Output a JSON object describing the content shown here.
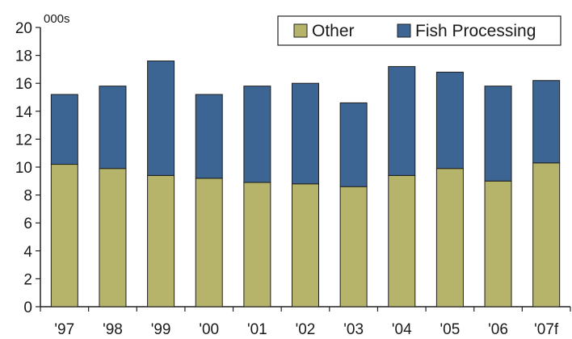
{
  "chart_data": {
    "type": "bar",
    "stacked": true,
    "unit_label": "000s",
    "categories": [
      "'97",
      "'98",
      "'99",
      "'00",
      "'01",
      "'02",
      "'03",
      "'04",
      "'05",
      "'06",
      "'07f"
    ],
    "series": [
      {
        "name": "Other",
        "color": "#b5b46a",
        "values": [
          10.2,
          9.9,
          9.4,
          9.2,
          8.9,
          8.8,
          8.6,
          9.4,
          9.9,
          9.0,
          10.3
        ]
      },
      {
        "name": "Fish Processing",
        "color": "#3d6594",
        "values": [
          5.0,
          5.9,
          8.2,
          6.0,
          6.9,
          7.2,
          6.0,
          7.8,
          6.9,
          6.8,
          5.9
        ]
      }
    ],
    "ylim": [
      0,
      20
    ],
    "yticks": [
      0,
      2,
      4,
      6,
      8,
      10,
      12,
      14,
      16,
      18,
      20
    ],
    "grid": false,
    "legend_position": "top-right",
    "title": "",
    "xlabel": "",
    "ylabel": ""
  }
}
